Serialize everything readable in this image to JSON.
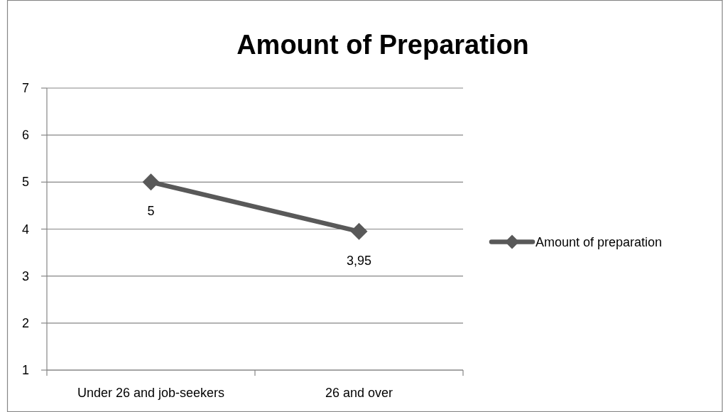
{
  "chart_data": {
    "type": "line",
    "title": "Amount of Preparation",
    "categories": [
      "Under 26 and job-seekers",
      "26 and over"
    ],
    "series": [
      {
        "name": "Amount of preparation",
        "color": "#595959",
        "values": [
          5,
          3.95
        ],
        "value_labels": [
          "5",
          "3,95"
        ]
      }
    ],
    "ylim": [
      1,
      7
    ],
    "yticks": [
      1,
      2,
      3,
      4,
      5,
      6,
      7
    ],
    "grid": "y",
    "legend": "right",
    "marker": "diamond",
    "line_style": "solid"
  }
}
